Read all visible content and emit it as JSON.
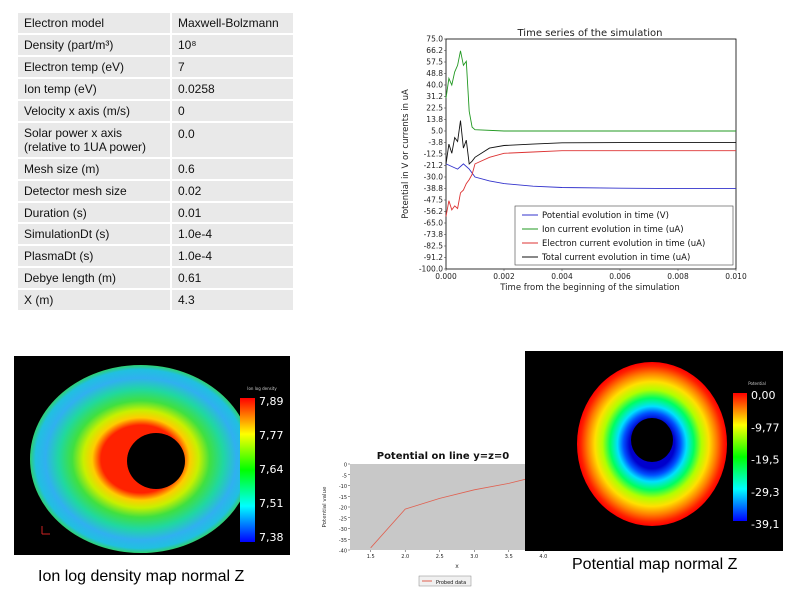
{
  "params": [
    {
      "label": "Electron model",
      "value": "Maxwell-Bolzmann"
    },
    {
      "label": "Density (part/m³)",
      "value": "10⁸"
    },
    {
      "label": "Electron temp (eV)",
      "value": "7"
    },
    {
      "label": "Ion temp (eV)",
      "value": "0.0258"
    },
    {
      "label": "Velocity x axis (m/s)",
      "value": "0"
    },
    {
      "label": "Solar power x axis (relative to 1UA power)",
      "value": "0.0"
    },
    {
      "label": "Mesh size (m)",
      "value": "0.6"
    },
    {
      "label": "Detector mesh size",
      "value": "0.02"
    },
    {
      "label": "Duration (s)",
      "value": "0.01"
    },
    {
      "label": "SimulationDt (s)",
      "value": "1.0e-4"
    },
    {
      "label": "PlasmaDt (s)",
      "value": "1.0e-4"
    },
    {
      "label": "Debye length (m)",
      "value": "0.61"
    },
    {
      "label": "X (m)",
      "value": "4.3"
    }
  ],
  "chart_data": [
    {
      "type": "line",
      "title": "Time series of the simulation",
      "xlabel": "Time from the beginning of the simulation",
      "ylabel": "Potential in V or currents in uA",
      "xlim": [
        0,
        0.01
      ],
      "ylim": [
        -100,
        75
      ],
      "x_ticks": [
        "0.000",
        "0.002",
        "0.004",
        "0.006",
        "0.008",
        "0.010"
      ],
      "y_ticks": [
        "75.0",
        "66.2",
        "57.5",
        "48.8",
        "40.0",
        "31.2",
        "22.5",
        "13.8",
        "5.0",
        "-3.8",
        "-12.5",
        "-21.2",
        "-30.0",
        "-38.8",
        "-47.5",
        "-56.2",
        "-65.0",
        "-73.8",
        "-82.5",
        "-91.2",
        "-100.0"
      ],
      "legend_position": "bottom-right",
      "series": [
        {
          "name": "Potential evolution in time (V)",
          "color": "#3333cc",
          "x": [
            0,
            0.0002,
            0.0004,
            0.0006,
            0.0008,
            0.001,
            0.0015,
            0.002,
            0.003,
            0.004,
            0.006,
            0.008,
            0.01
          ],
          "y": [
            -20,
            -22,
            -24,
            -20,
            -24,
            -30,
            -33,
            -35,
            -37,
            -38,
            -38.5,
            -38.8,
            -38.8
          ]
        },
        {
          "name": "Ion current evolution in time (uA)",
          "color": "#229922",
          "x": [
            0,
            0.0001,
            0.0002,
            0.0003,
            0.0004,
            0.0005,
            0.0006,
            0.0007,
            0.0008,
            0.0009,
            0.001,
            0.002,
            0.004,
            0.006,
            0.008,
            0.01
          ],
          "y": [
            30,
            45,
            40,
            50,
            55,
            66,
            55,
            58,
            20,
            8,
            6,
            5,
            5,
            5,
            5,
            5
          ]
        },
        {
          "name": "Electron current evolution in time (uA)",
          "color": "#dd3333",
          "x": [
            0,
            0.0001,
            0.0002,
            0.0003,
            0.0004,
            0.0005,
            0.0006,
            0.0007,
            0.0008,
            0.0009,
            0.001,
            0.0015,
            0.002,
            0.003,
            0.004,
            0.006,
            0.008,
            0.01
          ],
          "y": [
            -60,
            -48,
            -55,
            -52,
            -54,
            -42,
            -40,
            -35,
            -32,
            -28,
            -20,
            -15,
            -12,
            -11,
            -10,
            -10,
            -10,
            -10
          ]
        },
        {
          "name": "Total current evolution in time (uA)",
          "color": "#111111",
          "x": [
            0,
            0.0001,
            0.0002,
            0.0003,
            0.0004,
            0.0005,
            0.0006,
            0.0007,
            0.0008,
            0.0009,
            0.001,
            0.0015,
            0.002,
            0.003,
            0.004,
            0.006,
            0.008,
            0.01
          ],
          "y": [
            -20,
            -5,
            -12,
            0,
            -3,
            13,
            -8,
            -2,
            -20,
            -18,
            -15,
            -8,
            -6,
            -5,
            -4,
            -3.8,
            -3.8,
            -3.8
          ]
        }
      ]
    },
    {
      "type": "line",
      "title": "Potential on line y=z=0",
      "xlabel": "x",
      "ylabel": "Potential value",
      "xlim": [
        1.2,
        4.3
      ],
      "ylim": [
        -40,
        0
      ],
      "x_ticks": [
        "1.5",
        "2.0",
        "2.5",
        "3.0",
        "3.5",
        "4.0"
      ],
      "y_ticks": [
        "0",
        "-5",
        "-10",
        "-15",
        "-20",
        "-25",
        "-30",
        "-35",
        "-40"
      ],
      "legend_position": "bottom-center",
      "series": [
        {
          "name": "Probed data",
          "color": "#e06050",
          "x": [
            1.5,
            2.0,
            2.5,
            3.0,
            3.5,
            4.0,
            4.3
          ],
          "y": [
            -39,
            -21,
            -16,
            -12,
            -9,
            -5,
            -3
          ]
        }
      ]
    }
  ],
  "density_map": {
    "colorbar_title": "Ion log density",
    "ticks": [
      "7,89",
      "7,77",
      "7,64",
      "7,51",
      "7,38"
    ]
  },
  "potential_map": {
    "colorbar_title": "Potential",
    "ticks": [
      "0,00",
      "-9,77",
      "-19,5",
      "-29,3",
      "-39,1"
    ]
  },
  "captions": {
    "density": "Ion log density map normal Z",
    "potential": "Potential map normal Z"
  }
}
